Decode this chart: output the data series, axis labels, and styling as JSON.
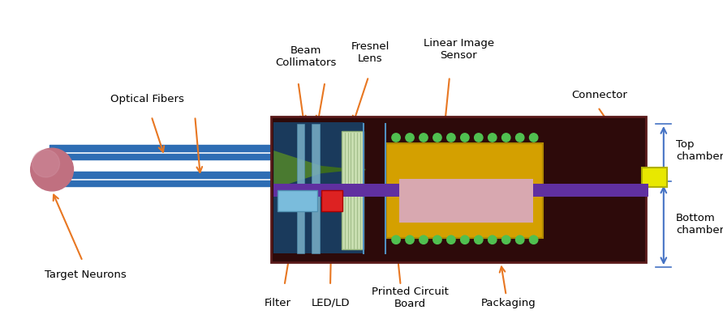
{
  "fig_width": 8.91,
  "fig_height": 4.04,
  "dpi": 100,
  "bg_color": "#ffffff",
  "arrow_color": "#E87722",
  "blue_arrow_color": "#4472C4",
  "fiber_color": "#2E6DB4",
  "neuron_color": "#C07080",
  "box_bg": "#2D0A0A",
  "purple_bar_color": "#6030A0",
  "green_lens_color": "#4A7A30",
  "fresnel_color": "#C8DEB0",
  "yellow_sensor_color": "#D4A000",
  "pink_inner_color": "#D8A0A8",
  "green_dots_color": "#50C050",
  "filter_color": "#7ABCDC",
  "led_color": "#DD2222",
  "connector_color": "#E8E800",
  "labels": {
    "beam_collimators": "Beam\nCollimators",
    "fresnel_lens": "Fresnel\nLens",
    "linear_image_sensor": "Linear Image\nSensor",
    "connector": "Connector",
    "optical_fibers": "Optical Fibers",
    "target_neurons": "Target Neurons",
    "filter": "Filter",
    "led_ld": "LED/LD",
    "pcb": "Printed Circuit\nBoard",
    "packaging": "Packaging",
    "top_chamber": "Top\nchamber",
    "bottom_chamber": "Bottom\nchamber"
  }
}
